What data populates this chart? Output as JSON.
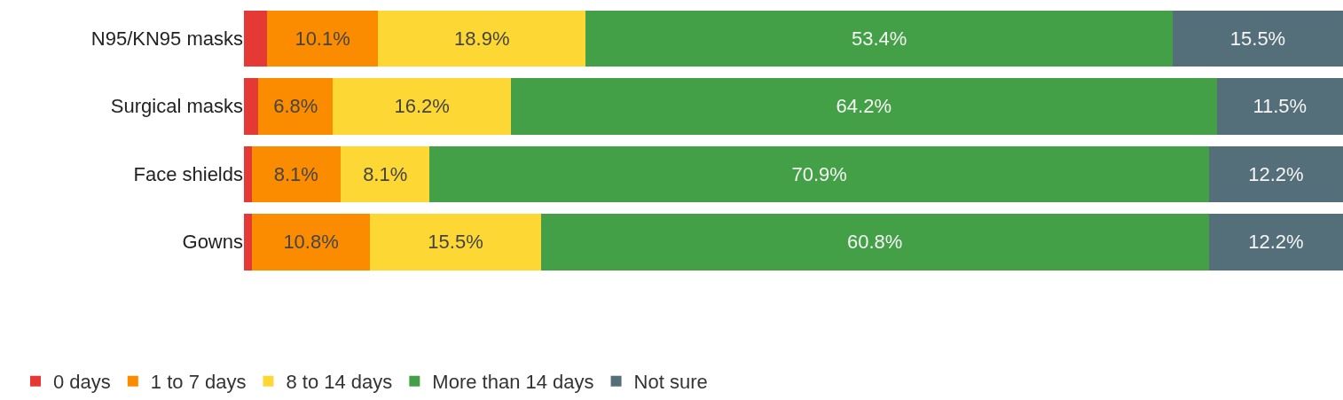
{
  "chart_data": {
    "type": "bar",
    "orientation": "horizontal",
    "stacked": true,
    "legend": "bottom left",
    "categories": [
      "N95/KN95 masks",
      "Surgical masks",
      "Face shields",
      "Gowns"
    ],
    "series": [
      {
        "name": "0 days",
        "color": "#e53935",
        "values": [
          2.1,
          1.3,
          0.7,
          0.7
        ],
        "value_labels": [
          null,
          null,
          null,
          null
        ]
      },
      {
        "name": "1 to 7 days",
        "color": "#fb8c00",
        "values": [
          10.1,
          6.8,
          8.1,
          10.8
        ],
        "value_labels": [
          "10.1%",
          "6.8%",
          "8.1%",
          "10.8%"
        ]
      },
      {
        "name": "8 to 14 days",
        "color": "#fdd835",
        "values": [
          18.9,
          16.2,
          8.1,
          15.5
        ],
        "value_labels": [
          "18.9%",
          "16.2%",
          "8.1%",
          "15.5%"
        ]
      },
      {
        "name": "More than 14 days",
        "color": "#43a047",
        "values": [
          53.4,
          64.2,
          70.9,
          60.8
        ],
        "value_labels": [
          "53.4%",
          "64.2%",
          "70.9%",
          "60.8%"
        ]
      },
      {
        "name": "Not sure",
        "color": "#546e7a",
        "values": [
          15.5,
          11.5,
          12.2,
          12.2
        ],
        "value_labels": [
          "15.5%",
          "11.5%",
          "12.2%",
          "12.2%"
        ]
      }
    ]
  }
}
